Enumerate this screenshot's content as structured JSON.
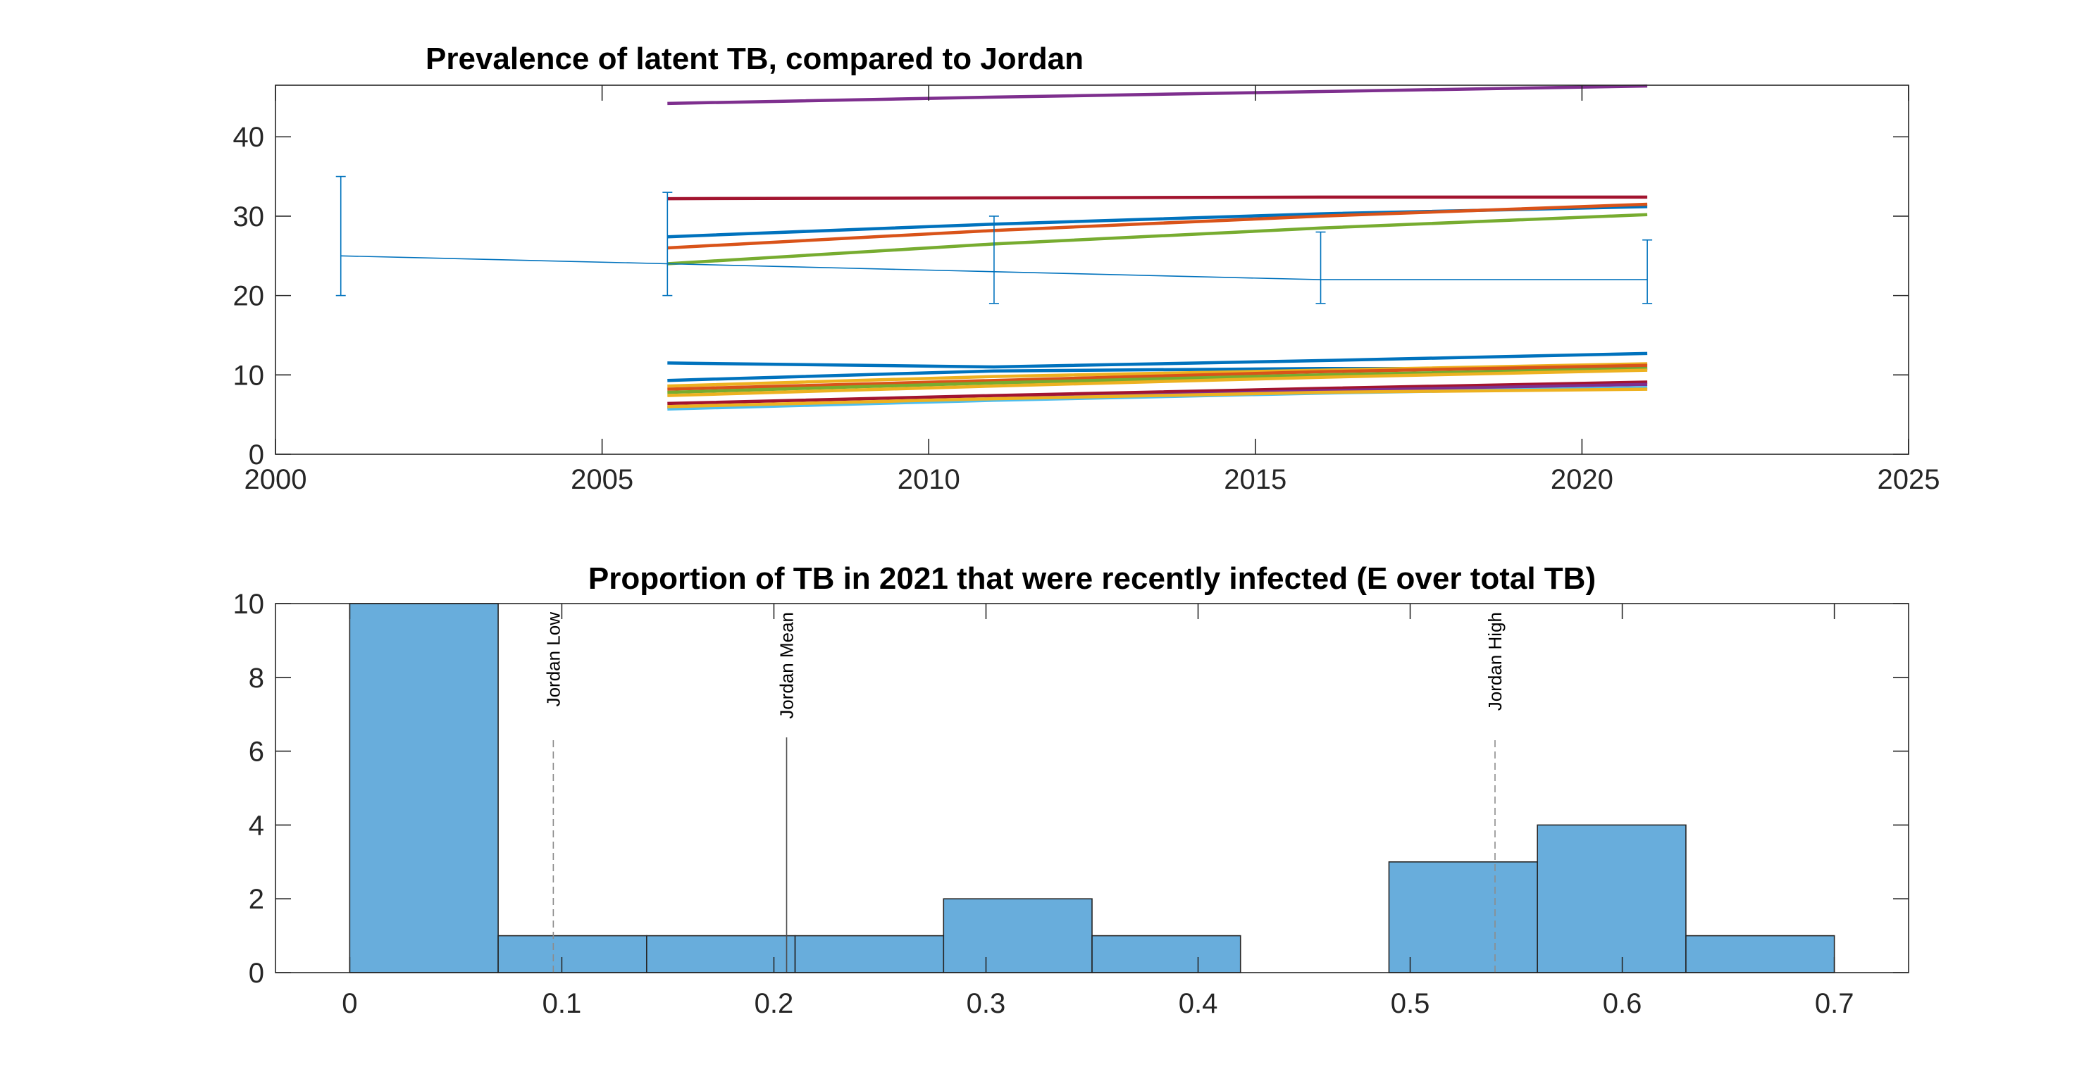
{
  "chart_data": [
    {
      "type": "line",
      "title": "Prevalence of latent TB, compared to Jordan",
      "xlabel": "",
      "ylabel": "",
      "xlim": [
        2000,
        2025
      ],
      "ylim": [
        0,
        46.5
      ],
      "xticks": [
        2000,
        2005,
        2010,
        2015,
        2020,
        2025
      ],
      "yticks": [
        0,
        10,
        20,
        30,
        40
      ],
      "grid": false,
      "legend": "none",
      "series": [
        {
          "color": "#7e2f8e",
          "x": [
            2006,
            2011,
            2016,
            2021
          ],
          "y": [
            44.2,
            45.0,
            45.7,
            46.4
          ]
        },
        {
          "color": "#a2142f",
          "x": [
            2006,
            2011,
            2016,
            2021
          ],
          "y": [
            32.2,
            32.3,
            32.4,
            32.4
          ]
        },
        {
          "color": "#0072bd",
          "x": [
            2006,
            2011,
            2016,
            2021
          ],
          "y": [
            27.4,
            29.0,
            30.3,
            31.2
          ]
        },
        {
          "color": "#d95319",
          "x": [
            2006,
            2011,
            2016,
            2021
          ],
          "y": [
            26.0,
            28.2,
            30.0,
            31.5
          ]
        },
        {
          "color": "#77ac30",
          "x": [
            2006,
            2011,
            2016,
            2021
          ],
          "y": [
            24.0,
            26.5,
            28.5,
            30.2
          ]
        },
        {
          "color": "#0072bd",
          "x": [
            2006,
            2011,
            2016,
            2021
          ],
          "y": [
            11.5,
            11.0,
            11.8,
            12.7
          ]
        },
        {
          "color": "#0072bd",
          "x": [
            2006,
            2011,
            2016,
            2021
          ],
          "y": [
            9.3,
            10.5,
            10.8,
            10.8
          ]
        },
        {
          "color": "#edb120",
          "x": [
            2006,
            2011,
            2016,
            2021
          ],
          "y": [
            8.6,
            9.8,
            10.6,
            11.4
          ]
        },
        {
          "color": "#d95319",
          "x": [
            2006,
            2011,
            2016,
            2021
          ],
          "y": [
            8.2,
            9.3,
            10.4,
            11.2
          ]
        },
        {
          "color": "#77ac30",
          "x": [
            2006,
            2011,
            2016,
            2021
          ],
          "y": [
            7.8,
            9.0,
            10.0,
            10.8
          ]
        },
        {
          "color": "#edb120",
          "x": [
            2006,
            2011,
            2016,
            2021
          ],
          "y": [
            7.4,
            8.6,
            9.7,
            10.6
          ]
        },
        {
          "color": "#a2142f",
          "x": [
            2006,
            2011,
            2016,
            2021
          ],
          "y": [
            6.4,
            7.4,
            8.3,
            9.1
          ]
        },
        {
          "color": "#7e2f8e",
          "x": [
            2006,
            2011,
            2016,
            2021
          ],
          "y": [
            5.9,
            7.0,
            8.0,
            8.8
          ]
        },
        {
          "color": "#4dbeee",
          "x": [
            2006,
            2011,
            2016,
            2021
          ],
          "y": [
            5.7,
            6.8,
            7.7,
            8.4
          ]
        },
        {
          "color": "#edb120",
          "x": [
            2006,
            2011,
            2016,
            2021
          ],
          "y": [
            6.0,
            7.0,
            7.8,
            8.2
          ]
        }
      ],
      "observed": {
        "color": "#0072bd",
        "x": [
          2001,
          2006,
          2011,
          2016,
          2021
        ],
        "y": [
          25,
          24,
          23,
          22,
          22
        ],
        "lower": [
          20,
          20,
          19,
          19,
          19
        ],
        "upper": [
          35,
          33,
          30,
          28,
          27
        ]
      }
    },
    {
      "type": "bar",
      "title": "Proportion of TB in 2021 that were recently infected (E over total TB)",
      "xlabel": "",
      "ylabel": "",
      "xlim": [
        -0.035,
        0.735
      ],
      "ylim": [
        0,
        10
      ],
      "xticks": [
        0,
        0.1,
        0.2,
        0.3,
        0.4,
        0.5,
        0.6,
        0.7
      ],
      "yticks": [
        0,
        2,
        4,
        6,
        8,
        10
      ],
      "grid": false,
      "legend": "none",
      "bar_color": "#4d9fd6",
      "bins": [
        {
          "start": 0.0,
          "end": 0.07,
          "count": 10
        },
        {
          "start": 0.07,
          "end": 0.14,
          "count": 1
        },
        {
          "start": 0.14,
          "end": 0.21,
          "count": 1
        },
        {
          "start": 0.21,
          "end": 0.28,
          "count": 1
        },
        {
          "start": 0.28,
          "end": 0.35,
          "count": 2
        },
        {
          "start": 0.35,
          "end": 0.42,
          "count": 1
        },
        {
          "start": 0.42,
          "end": 0.49,
          "count": 0
        },
        {
          "start": 0.49,
          "end": 0.56,
          "count": 3
        },
        {
          "start": 0.56,
          "end": 0.63,
          "count": 4
        },
        {
          "start": 0.63,
          "end": 0.7,
          "count": 1
        }
      ],
      "reference_lines": [
        {
          "label": "Jordan Low",
          "x": 0.096,
          "style": "dashed"
        },
        {
          "label": "Jordan Mean",
          "x": 0.206,
          "style": "solid"
        },
        {
          "label": "Jordan High",
          "x": 0.54,
          "style": "dashed"
        }
      ]
    }
  ]
}
